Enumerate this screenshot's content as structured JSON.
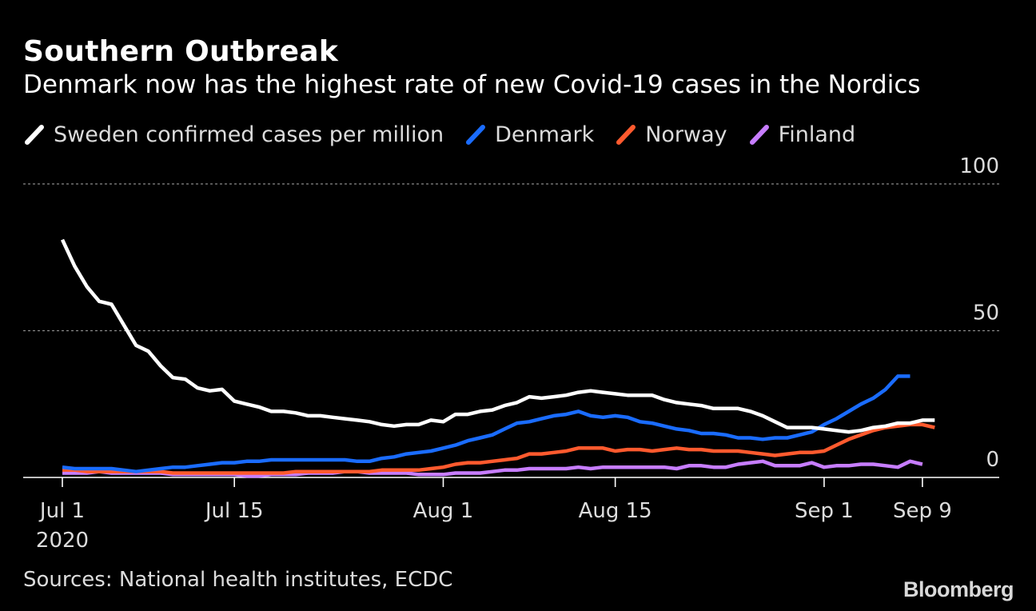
{
  "header": {
    "title": "Southern Outbreak",
    "subtitle": "Denmark now has the highest rate of new Covid-19 cases in the Nordics"
  },
  "legend": [
    {
      "label": "Sweden confirmed cases per million",
      "color": "#ffffff"
    },
    {
      "label": "Denmark",
      "color": "#1a6cff"
    },
    {
      "label": "Norway",
      "color": "#ff5a2e"
    },
    {
      "label": "Finland",
      "color": "#c77dff"
    }
  ],
  "footer": {
    "source": "Sources: National health institutes, ECDC",
    "brand": "Bloomberg"
  },
  "chart_data": {
    "type": "line",
    "y_ticks": [
      {
        "value": 100,
        "label": "100"
      },
      {
        "value": 50,
        "label": "50"
      },
      {
        "value": 0,
        "label": "0"
      }
    ],
    "x_ticks": [
      {
        "day": 0,
        "label": "Jul 1",
        "sublabel": "2020"
      },
      {
        "day": 14,
        "label": "Jul 15"
      },
      {
        "day": 31,
        "label": "Aug 1"
      },
      {
        "day": 45,
        "label": "Aug 15"
      },
      {
        "day": 62,
        "label": "Sep 1"
      },
      {
        "day": 70,
        "label": "Sep 9"
      }
    ],
    "xlim": [
      "2020-07-01",
      "2020-09-12"
    ],
    "ylim": [
      0,
      100
    ],
    "grid": true,
    "series": [
      {
        "name": "Sweden confirmed cases per million",
        "color": "#ffffff",
        "start_date": "2020-07-01",
        "values": [
          81,
          72,
          65,
          60,
          59,
          52,
          45,
          43,
          38,
          34,
          33.5,
          30.5,
          29.5,
          30,
          26,
          25,
          24,
          22.5,
          22.5,
          22,
          21,
          21,
          20.5,
          20,
          19.5,
          19,
          18,
          17.5,
          18,
          18,
          19.5,
          19,
          21.5,
          21.5,
          22.5,
          23,
          24.5,
          25.5,
          27.5,
          27,
          27.5,
          28,
          29,
          29.5,
          29,
          28.5,
          28,
          28,
          28,
          26.5,
          25.5,
          25,
          24.5,
          23.5,
          23.5,
          23.5,
          22.5,
          21,
          19,
          17,
          17,
          17,
          16.5,
          16,
          15.5,
          16,
          17,
          17.5,
          18.5,
          18.5,
          19.5,
          19.5
        ]
      },
      {
        "name": "Denmark",
        "color": "#1a6cff",
        "start_date": "2020-07-01",
        "values": [
          3.5,
          3,
          3,
          3,
          3,
          2.5,
          2,
          2.5,
          3,
          3.5,
          3.5,
          4,
          4.5,
          5,
          5,
          5.5,
          5.5,
          6,
          6,
          6,
          6,
          6,
          6,
          6,
          5.5,
          5.5,
          6.5,
          7,
          8,
          8.5,
          9,
          10,
          11,
          12.5,
          13.5,
          14.5,
          16.5,
          18.5,
          19,
          20,
          21,
          21.5,
          22.5,
          21,
          20.5,
          21,
          20.5,
          19,
          18.5,
          17.5,
          16.5,
          16,
          15,
          15,
          14.5,
          13.5,
          13.5,
          13,
          13.5,
          13.5,
          14.5,
          15.5,
          18,
          20,
          22.5,
          25,
          27,
          30,
          34.5,
          34.5
        ]
      },
      {
        "name": "Norway",
        "color": "#ff5a2e",
        "start_date": "2020-07-01",
        "values": [
          2.5,
          2.5,
          2,
          2,
          2,
          2,
          2,
          2,
          2,
          1.5,
          1.5,
          1.5,
          1.5,
          1.5,
          1.5,
          1.5,
          1.5,
          1.5,
          1.5,
          2,
          2,
          2,
          2,
          2,
          2,
          2,
          2.5,
          2.5,
          2.5,
          2.5,
          3,
          3.5,
          4.5,
          5,
          5,
          5.5,
          6,
          6.5,
          8,
          8,
          8.5,
          9,
          10,
          10,
          10,
          9,
          9.5,
          9.5,
          9,
          9.5,
          10,
          9.5,
          9.5,
          9,
          9,
          9,
          8.5,
          8,
          7.5,
          8,
          8.5,
          8.5,
          9,
          11,
          13,
          14.5,
          16,
          17,
          17.5,
          18,
          18,
          17
        ]
      },
      {
        "name": "Finland",
        "color": "#c77dff",
        "start_date": "2020-07-01",
        "values": [
          1.5,
          1.5,
          1.5,
          2,
          1.5,
          1.5,
          1.5,
          1.5,
          1.5,
          1,
          1,
          1,
          1,
          1,
          1,
          0.5,
          0.5,
          1,
          1,
          1,
          1.5,
          1.5,
          1.5,
          2,
          2,
          1.5,
          1.5,
          1.5,
          1.5,
          1,
          1,
          1,
          1.5,
          1.5,
          1.5,
          2,
          2.5,
          2.5,
          3,
          3,
          3,
          3,
          3.5,
          3,
          3.5,
          3.5,
          3.5,
          3.5,
          3.5,
          3.5,
          3,
          4,
          4,
          3.5,
          3.5,
          4.5,
          5,
          5.5,
          4,
          4,
          4,
          5,
          3.5,
          4,
          4,
          4.5,
          4.5,
          4,
          3.5,
          5.5,
          4.5
        ]
      }
    ]
  }
}
